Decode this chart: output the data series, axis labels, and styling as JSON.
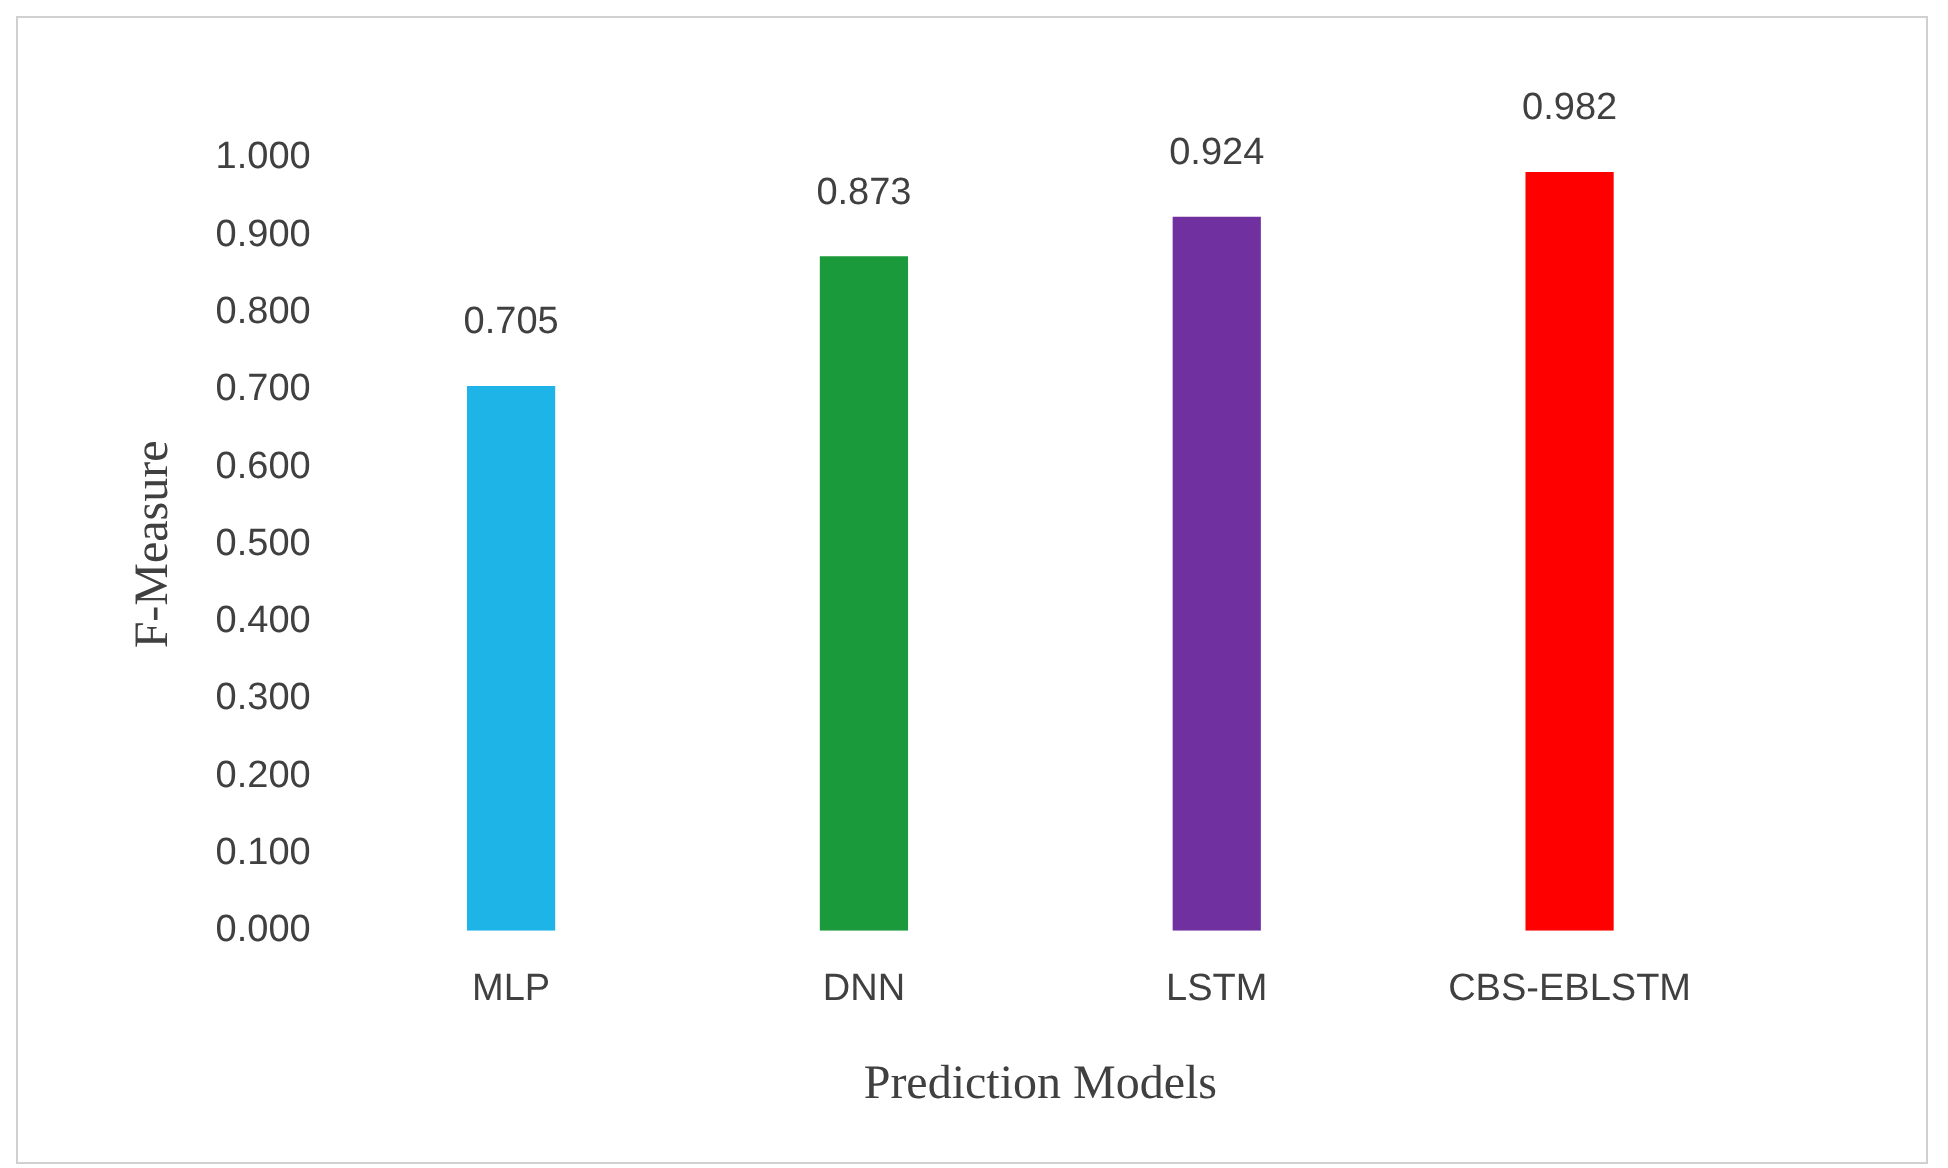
{
  "chart_data": {
    "type": "bar",
    "xlabel": "Prediction Models",
    "ylabel": "F-Measure",
    "categories": [
      "MLP",
      "DNN",
      "LSTM",
      "CBS-EBLSTM"
    ],
    "values": [
      0.705,
      0.873,
      0.924,
      0.982
    ],
    "colors": [
      "#1fb4e8",
      "#1a9a3a",
      "#7030a0",
      "#ff0000"
    ],
    "ylim": [
      0,
      1
    ],
    "yticks": [
      {
        "value": 0,
        "label": "0.000"
      },
      {
        "value": 0.1,
        "label": "0.100"
      },
      {
        "value": 0.2,
        "label": "0.200"
      },
      {
        "value": 0.3,
        "label": "0.300"
      },
      {
        "value": 0.4,
        "label": "0.400"
      },
      {
        "value": 0.5,
        "label": "0.500"
      },
      {
        "value": 0.6,
        "label": "0.600"
      },
      {
        "value": 0.7,
        "label": "0.700"
      },
      {
        "value": 0.8,
        "label": "0.800"
      },
      {
        "value": 0.9,
        "label": "0.900"
      },
      {
        "value": 1,
        "label": "1.000"
      }
    ],
    "data_labels": true,
    "grid": false,
    "legend": false
  }
}
